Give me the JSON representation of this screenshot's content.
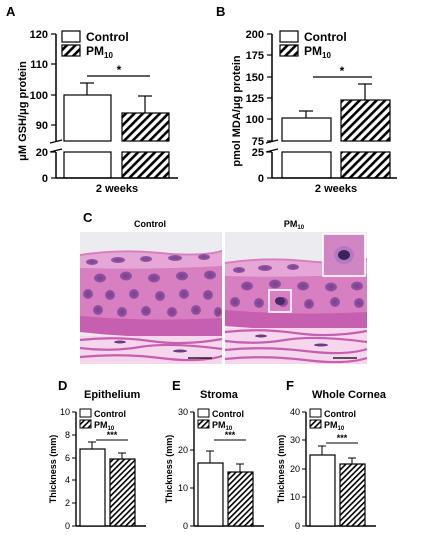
{
  "panels": {
    "A": "A",
    "B": "B",
    "C": "C",
    "D": "D",
    "E": "E",
    "F": "F"
  },
  "legend": {
    "control": "Control",
    "pm10_main": "PM",
    "pm10_sub": "10"
  },
  "histology": {
    "control_label": "Control",
    "pm10_main": "PM",
    "pm10_sub": "10"
  },
  "colors": {
    "bar_fill": "#ffffff",
    "stroke": "#000000",
    "tissue_pink": "#d77fc0",
    "tissue_purple": "#9b4f9f",
    "stroma_pink": "#f1c3e4"
  },
  "chart_data": [
    {
      "panel": "A",
      "type": "bar",
      "categories": [
        "2 weeks"
      ],
      "series": [
        {
          "name": "Control",
          "values": [
            100
          ],
          "errors": [
            4
          ],
          "pattern": "open"
        },
        {
          "name": "PM10",
          "values": [
            94
          ],
          "errors": [
            5.5
          ],
          "pattern": "hatched"
        }
      ],
      "ylabel": "μM GSH/μg protein",
      "xlabel": "2 weeks",
      "y_broken": true,
      "ylim_lower": [
        0,
        20
      ],
      "ylim_upper": [
        85,
        120
      ],
      "yticks_lower": [
        "0",
        "20"
      ],
      "yticks_upper": [
        "90",
        "100",
        "110",
        "120"
      ],
      "significance": "*"
    },
    {
      "panel": "B",
      "type": "bar",
      "categories": [
        "2 weeks"
      ],
      "series": [
        {
          "name": "Control",
          "values": [
            101
          ],
          "errors": [
            8
          ],
          "pattern": "open"
        },
        {
          "name": "PM10",
          "values": [
            122
          ],
          "errors": [
            17
          ],
          "pattern": "hatched"
        }
      ],
      "ylabel": "pmol MDA/μg protein",
      "xlabel": "2 weeks",
      "y_broken": true,
      "ylim_lower": [
        0,
        25
      ],
      "ylim_upper": [
        75,
        200
      ],
      "yticks_lower": [
        "0",
        "25"
      ],
      "yticks_upper": [
        "75",
        "100",
        "125",
        "150",
        "175",
        "200"
      ],
      "significance": "*"
    },
    {
      "panel": "D",
      "type": "bar",
      "title": "Epithelium",
      "series": [
        {
          "name": "Control",
          "values": [
            6.8
          ],
          "errors": [
            0.6
          ],
          "pattern": "open"
        },
        {
          "name": "PM10",
          "values": [
            5.9
          ],
          "errors": [
            0.5
          ],
          "pattern": "hatched"
        }
      ],
      "ylabel": "Thickness (mm)",
      "ylim": [
        0,
        10
      ],
      "yticks": [
        "0",
        "2",
        "4",
        "6",
        "8",
        "10"
      ],
      "significance": "***"
    },
    {
      "panel": "E",
      "type": "bar",
      "title": "Stroma",
      "series": [
        {
          "name": "Control",
          "values": [
            18.2
          ],
          "errors": [
            3.0
          ],
          "pattern": "open"
        },
        {
          "name": "PM10",
          "values": [
            15.8
          ],
          "errors": [
            2.0
          ],
          "pattern": "hatched"
        }
      ],
      "ylabel": "Thickness (mm)",
      "ylim": [
        0,
        30
      ],
      "yticks": [
        "0",
        "10",
        "20",
        "30"
      ],
      "significance": "***"
    },
    {
      "panel": "F",
      "type": "bar",
      "title": "Whole Cornea",
      "series": [
        {
          "name": "Control",
          "values": [
            25.0
          ],
          "errors": [
            3.0
          ],
          "pattern": "open"
        },
        {
          "name": "PM10",
          "values": [
            21.7
          ],
          "errors": [
            2.0
          ],
          "pattern": "hatched"
        }
      ],
      "ylabel": "Thickness (mm)",
      "ylim": [
        0,
        40
      ],
      "yticks": [
        "0",
        "10",
        "20",
        "30",
        "40"
      ],
      "significance": "***"
    }
  ]
}
